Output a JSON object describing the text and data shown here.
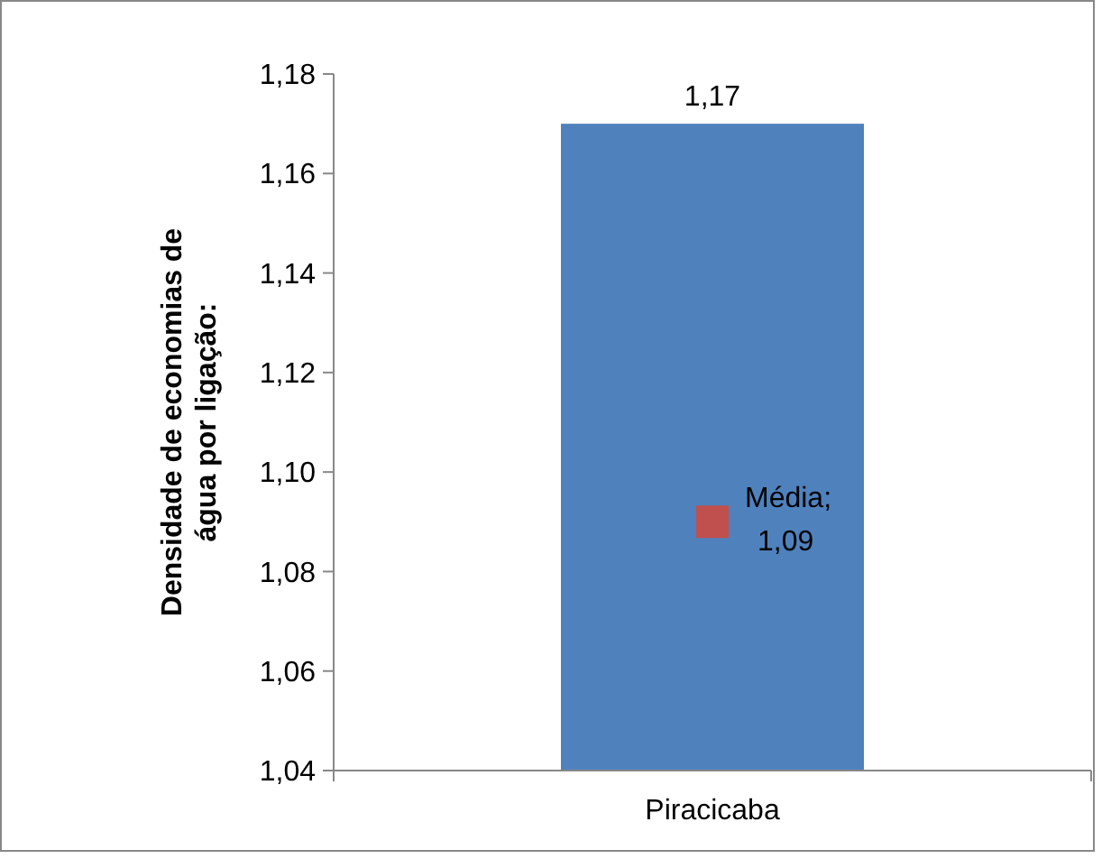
{
  "chart_data": {
    "type": "bar",
    "ylabel": "Densidade de economias de\nágua por ligação:",
    "categories": [
      "Piracicaba"
    ],
    "series": [
      {
        "color": "#4f81bd",
        "values": [
          1.17
        ],
        "value_labels": [
          "1,17"
        ]
      },
      {
        "type": "scatter",
        "name": "Média",
        "x": [
          "Piracicaba"
        ],
        "color": "#c0504d",
        "marker": "square",
        "values": [
          1.09
        ],
        "value_labels": [
          ";\n1,09"
        ]
      }
    ],
    "ylim": [
      1.04,
      1.18
    ],
    "yticks": [
      {
        "value": 1.04,
        "label": "1,04"
      },
      {
        "value": 1.06,
        "label": "1,06"
      },
      {
        "value": 1.08,
        "label": "1,08"
      },
      {
        "value": 1.1,
        "label": "1,10"
      },
      {
        "value": 1.12,
        "label": "1,12"
      },
      {
        "value": 1.14,
        "label": "1,14"
      },
      {
        "value": 1.16,
        "label": "1,16"
      },
      {
        "value": 1.18,
        "label": "1,18"
      }
    ],
    "grid": false
  }
}
